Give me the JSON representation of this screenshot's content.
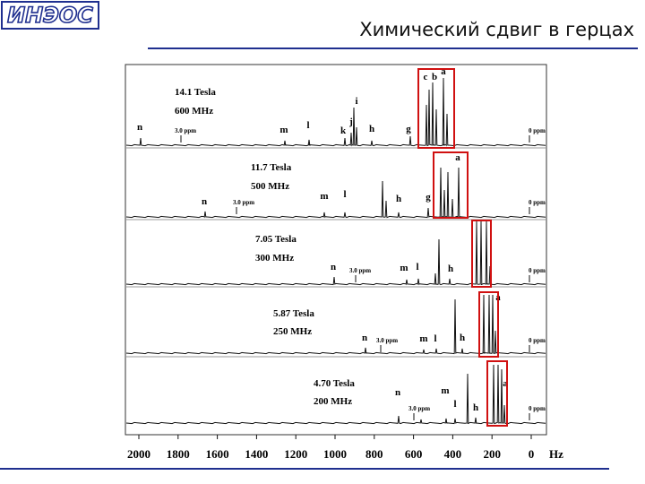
{
  "header": {
    "logo": "ИНЭОС",
    "title": "Химический сдвиг в герцах"
  },
  "spectra": [
    {
      "field": "14.1 Tesla",
      "frequency": "600 MHz",
      "peaks": [
        "n",
        "m",
        "l",
        "k",
        "j",
        "i",
        "h",
        "g",
        "c",
        "b",
        "a"
      ],
      "ref_label": "3.0 ppm",
      "zero_label": "0 ppm"
    },
    {
      "field": "11.7 Tesla",
      "frequency": "500 MHz",
      "peaks": [
        "n",
        "m",
        "l",
        "h",
        "g",
        "a"
      ],
      "ref_label": "3.0 ppm",
      "zero_label": "0 ppm"
    },
    {
      "field": "7.05 Tesla",
      "frequency": "300 MHz",
      "peaks": [
        "n",
        "m",
        "l",
        "h"
      ],
      "ref_label": "3.0 ppm",
      "zero_label": "0 ppm"
    },
    {
      "field": "5.87 Tesla",
      "frequency": "250 MHz",
      "peaks": [
        "n",
        "m",
        "l",
        "h",
        "a"
      ],
      "ref_label": "3.0 ppm",
      "zero_label": "0 ppm"
    },
    {
      "field": "4.70 Tesla",
      "frequency": "200 MHz",
      "peaks": [
        "n",
        "m",
        "l",
        "h",
        "a"
      ],
      "ref_label": "3.0 ppm",
      "zero_label": "0 ppm"
    }
  ],
  "x_axis": {
    "ticks": [
      2000,
      1800,
      1600,
      1400,
      1200,
      1000,
      800,
      600,
      400,
      200,
      0
    ],
    "unit": "Hz"
  }
}
